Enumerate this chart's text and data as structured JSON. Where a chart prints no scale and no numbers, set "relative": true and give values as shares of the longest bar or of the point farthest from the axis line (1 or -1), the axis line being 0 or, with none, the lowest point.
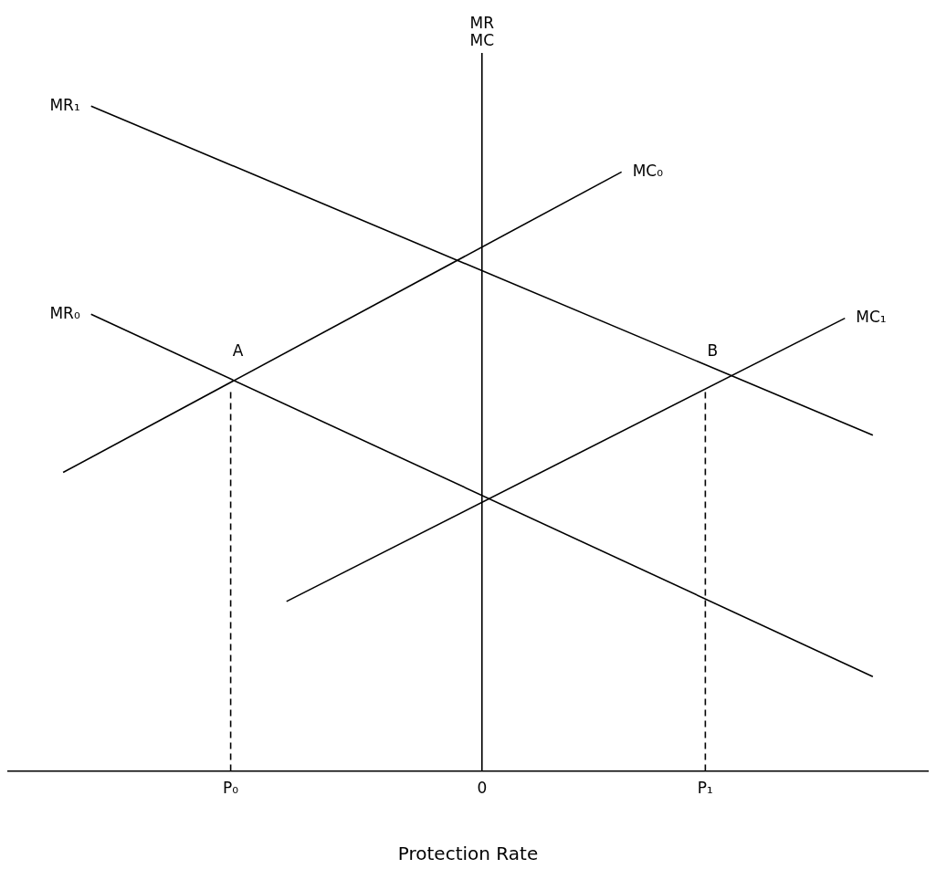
{
  "chart_data": {
    "type": "line",
    "relative": true,
    "xlabel": "Protection Rate",
    "ylabel": "MR MC",
    "categories": [
      null,
      null,
      null,
      null,
      null,
      null,
      null,
      null,
      "P₀",
      null,
      null,
      null,
      null,
      null,
      null,
      null,
      null,
      "0",
      null,
      null,
      null,
      null,
      null,
      null,
      null,
      "P₁",
      null,
      null,
      null,
      null,
      null,
      null,
      null,
      null
    ],
    "grid": false,
    "legend": false,
    "marker": "none",
    "series": [
      {
        "name": "MR₁",
        "color": "#000000",
        "values": [
          null,
          null,
          null,
          1,
          null,
          null,
          null,
          null,
          null,
          null,
          null,
          null,
          null,
          null,
          null,
          null,
          null,
          null,
          null,
          null,
          null,
          null,
          null,
          null,
          null,
          null,
          null,
          null,
          null,
          null,
          null,
          0.505,
          null,
          null
        ]
      },
      {
        "name": "MR₀",
        "color": "#000000",
        "values": [
          null,
          null,
          null,
          0.687,
          null,
          null,
          null,
          null,
          null,
          null,
          null,
          null,
          null,
          null,
          null,
          null,
          null,
          null,
          null,
          null,
          null,
          null,
          null,
          null,
          null,
          null,
          null,
          null,
          null,
          null,
          null,
          0.142,
          null,
          null
        ]
      },
      {
        "name": "MC₀",
        "color": "#000000",
        "values": [
          null,
          null,
          0.449,
          null,
          null,
          null,
          null,
          null,
          null,
          null,
          null,
          null,
          null,
          null,
          null,
          null,
          null,
          null,
          null,
          null,
          null,
          null,
          0.901,
          null,
          null,
          null,
          null,
          null,
          null,
          null,
          null,
          null,
          null,
          null
        ]
      },
      {
        "name": "MC₁",
        "color": "#000000",
        "values": [
          null,
          null,
          null,
          null,
          null,
          null,
          null,
          null,
          null,
          null,
          0.255,
          null,
          null,
          null,
          null,
          null,
          null,
          null,
          null,
          null,
          null,
          null,
          null,
          null,
          null,
          null,
          null,
          null,
          null,
          null,
          0.681,
          null,
          null,
          null
        ]
      },
      {
        "color": "#000000",
        "line_style": "dashed",
        "x": [
          "P₀",
          "P₀"
        ],
        "values": [
          0,
          0.575
        ]
      },
      {
        "color": "#000000",
        "line_style": "dashed",
        "x": [
          "P₁",
          "P₁"
        ],
        "values": [
          0,
          0.575
        ]
      }
    ],
    "ref_lines": [
      {
        "axis": "x",
        "value": "0"
      }
    ],
    "annotations": [
      "A",
      "B"
    ]
  }
}
